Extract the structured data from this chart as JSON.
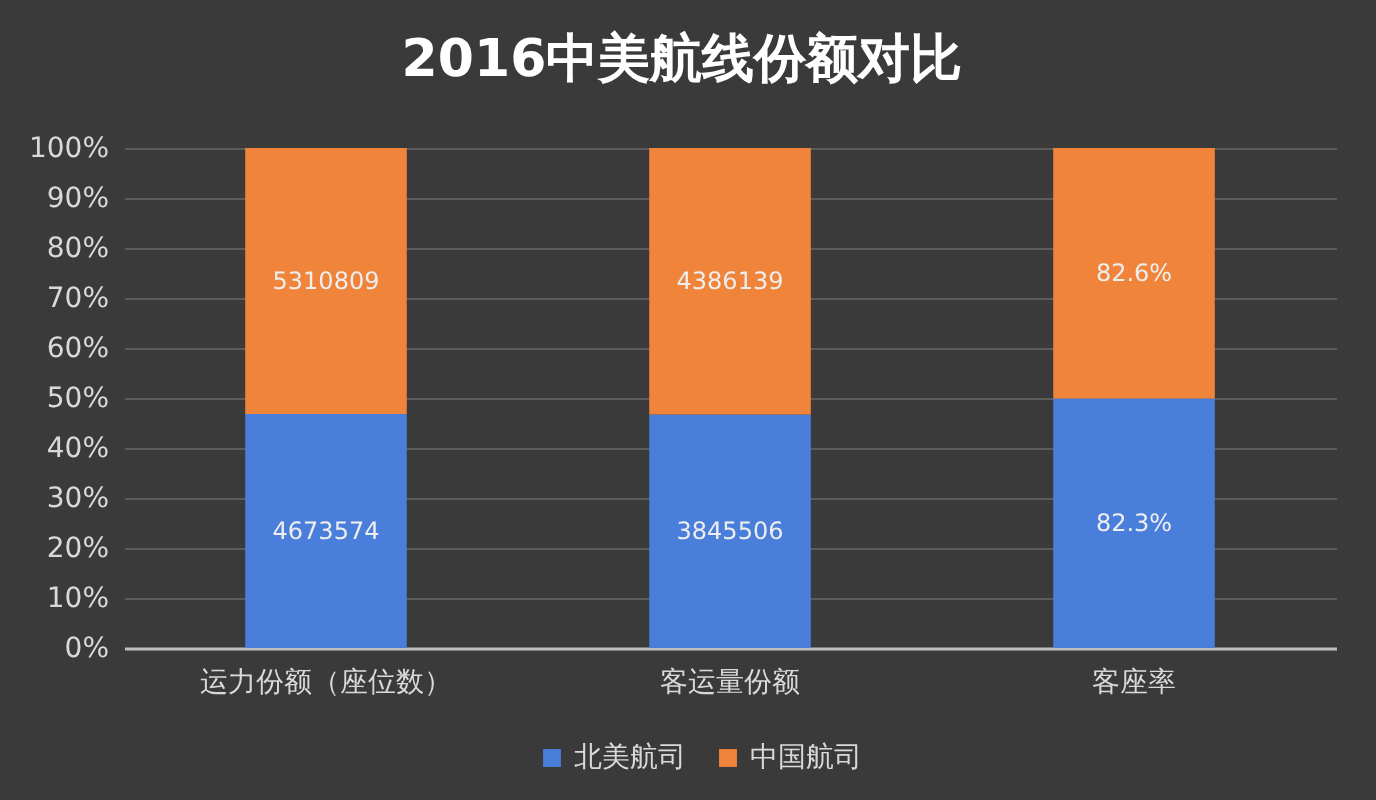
{
  "chart_data": {
    "type": "bar",
    "title": "2016中美航线份额对比",
    "categories": [
      "运力份额（座位数）",
      "客运量份额",
      "客座率"
    ],
    "stacked": true,
    "series": [
      {
        "name": "北美航司",
        "color": "#4a7edb",
        "values": [
          46.8,
          46.7,
          49.9
        ]
      },
      {
        "name": "中国航司",
        "color": "#f0843a",
        "values": [
          53.2,
          53.3,
          50.1
        ]
      }
    ],
    "annotations": [
      "4673574",
      "3845506",
      "82.3%",
      "5310809",
      "4386139",
      "82.6%"
    ],
    "ylim": [
      0,
      100
    ],
    "yticks": [
      {
        "value": 0,
        "label": "0%"
      },
      {
        "value": 10,
        "label": "10%"
      },
      {
        "value": 20,
        "label": "20%"
      },
      {
        "value": 30,
        "label": "30%"
      },
      {
        "value": 40,
        "label": "40%"
      },
      {
        "value": 50,
        "label": "50%"
      },
      {
        "value": 60,
        "label": "60%"
      },
      {
        "value": 70,
        "label": "70%"
      },
      {
        "value": 80,
        "label": "80%"
      },
      {
        "value": 90,
        "label": "90%"
      },
      {
        "value": 100,
        "label": "100%"
      }
    ],
    "grid": "y",
    "legend": "bottom"
  }
}
